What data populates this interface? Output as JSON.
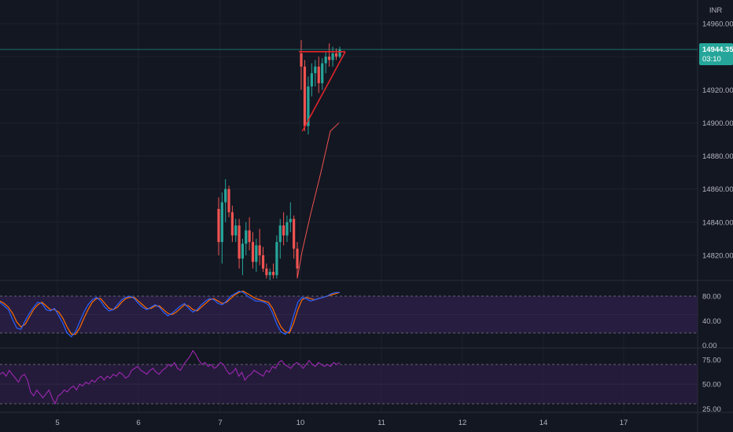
{
  "currency": "INR",
  "last_price": "14944.35",
  "countdown": "03:10",
  "colors": {
    "background": "#131722",
    "up": "#26a69a",
    "down": "#ef5350",
    "price_label": "#26a69a",
    "pattern": "#e0252b",
    "stoch_k": "#2962ff",
    "stoch_d": "#ff6d00",
    "rsi": "#9c27b0",
    "osc_band": "#2c1e45"
  },
  "chart_data": [
    {
      "type": "candlestick",
      "panel": "price",
      "ylim": [
        14805,
        14975
      ],
      "y_ticks": [
        "14820.00",
        "14840.00",
        "14860.00",
        "14880.00",
        "14900.00",
        "14920.00",
        "14940.00",
        "14960.00"
      ],
      "x_ticks": [
        "5",
        "6",
        "7",
        "10",
        "11",
        "12",
        "14",
        "17"
      ],
      "candles": [
        {
          "o": 14848,
          "h": 14855,
          "l": 14820,
          "c": 14828
        },
        {
          "o": 14828,
          "h": 14858,
          "l": 14815,
          "c": 14852
        },
        {
          "o": 14852,
          "h": 14866,
          "l": 14840,
          "c": 14860
        },
        {
          "o": 14860,
          "h": 14862,
          "l": 14843,
          "c": 14846
        },
        {
          "o": 14846,
          "h": 14850,
          "l": 14828,
          "c": 14832
        },
        {
          "o": 14832,
          "h": 14842,
          "l": 14828,
          "c": 14838
        },
        {
          "o": 14838,
          "h": 14842,
          "l": 14812,
          "c": 14818
        },
        {
          "o": 14818,
          "h": 14830,
          "l": 14808,
          "c": 14827
        },
        {
          "o": 14827,
          "h": 14840,
          "l": 14820,
          "c": 14835
        },
        {
          "o": 14835,
          "h": 14843,
          "l": 14823,
          "c": 14828
        },
        {
          "o": 14828,
          "h": 14834,
          "l": 14812,
          "c": 14816
        },
        {
          "o": 14816,
          "h": 14830,
          "l": 14810,
          "c": 14826
        },
        {
          "o": 14826,
          "h": 14836,
          "l": 14814,
          "c": 14820
        },
        {
          "o": 14820,
          "h": 14825,
          "l": 14810,
          "c": 14812
        },
        {
          "o": 14812,
          "h": 14815,
          "l": 14806,
          "c": 14808
        },
        {
          "o": 14808,
          "h": 14812,
          "l": 14805,
          "c": 14810
        },
        {
          "o": 14810,
          "h": 14815,
          "l": 14806,
          "c": 14808
        },
        {
          "o": 14808,
          "h": 14832,
          "l": 14806,
          "c": 14828
        },
        {
          "o": 14828,
          "h": 14842,
          "l": 14818,
          "c": 14838
        },
        {
          "o": 14838,
          "h": 14846,
          "l": 14826,
          "c": 14832
        },
        {
          "o": 14832,
          "h": 14844,
          "l": 14828,
          "c": 14840
        },
        {
          "o": 14840,
          "h": 14852,
          "l": 14834,
          "c": 14842
        },
        {
          "o": 14842,
          "h": 14844,
          "l": 14818,
          "c": 14824
        },
        {
          "o": 14824,
          "h": 14828,
          "l": 14806,
          "c": 14812
        },
        {
          "o": 14942,
          "h": 14950,
          "l": 14920,
          "c": 14934
        },
        {
          "o": 14934,
          "h": 14938,
          "l": 14895,
          "c": 14898
        },
        {
          "o": 14898,
          "h": 14928,
          "l": 14893,
          "c": 14922
        },
        {
          "o": 14922,
          "h": 14936,
          "l": 14916,
          "c": 14930
        },
        {
          "o": 14930,
          "h": 14938,
          "l": 14922,
          "c": 14934
        },
        {
          "o": 14934,
          "h": 14940,
          "l": 14918,
          "c": 14924
        },
        {
          "o": 14924,
          "h": 14939,
          "l": 14920,
          "c": 14936
        },
        {
          "o": 14936,
          "h": 14943,
          "l": 14930,
          "c": 14940
        },
        {
          "o": 14940,
          "h": 14948,
          "l": 14934,
          "c": 14938
        },
        {
          "o": 14938,
          "h": 14946,
          "l": 14934,
          "c": 14942
        },
        {
          "o": 14942,
          "h": 14945,
          "l": 14938,
          "c": 14940
        },
        {
          "o": 14940,
          "h": 14946,
          "l": 14939,
          "c": 14944.35
        }
      ],
      "sma": [
        14806,
        14822,
        14845,
        14870,
        14895,
        14900
      ],
      "pattern_lines": [
        {
          "from": {
            "bar": 24,
            "y": 14943
          },
          "to": {
            "bar": 36,
            "y": 14943
          }
        },
        {
          "from": {
            "bar": 25,
            "y": 14895
          },
          "to": {
            "bar": 36,
            "y": 14943
          }
        }
      ]
    },
    {
      "type": "line",
      "panel": "stochastic",
      "ylim": [
        -2,
        95
      ],
      "y_ticks": [
        "80.00",
        "40.00",
        "0.00"
      ],
      "band": [
        20,
        80
      ],
      "series": [
        {
          "key": "k",
          "values": [
            70,
            64,
            58,
            42,
            28,
            26,
            40,
            52,
            62,
            70,
            68,
            58,
            56,
            60,
            48,
            36,
            20,
            14,
            22,
            38,
            54,
            66,
            74,
            78,
            72,
            62,
            56,
            58,
            66,
            74,
            78,
            80,
            76,
            68,
            62,
            58,
            62,
            66,
            62,
            54,
            48,
            52,
            58,
            64,
            68,
            60,
            54,
            58,
            66,
            72,
            76,
            74,
            68,
            66,
            72,
            80,
            84,
            88,
            86,
            80,
            76,
            72,
            72,
            70,
            66,
            52,
            34,
            22,
            18,
            24,
            48,
            70,
            78,
            76,
            72,
            74,
            76,
            78,
            80,
            84,
            86,
            86
          ]
        },
        {
          "key": "d",
          "values": [
            72,
            68,
            62,
            52,
            38,
            30,
            34,
            46,
            58,
            66,
            70,
            64,
            58,
            58,
            54,
            44,
            30,
            18,
            18,
            28,
            44,
            58,
            70,
            76,
            76,
            68,
            60,
            58,
            62,
            70,
            76,
            78,
            78,
            72,
            66,
            60,
            60,
            64,
            64,
            58,
            52,
            50,
            54,
            60,
            66,
            64,
            58,
            56,
            62,
            68,
            74,
            76,
            72,
            68,
            70,
            76,
            82,
            86,
            88,
            84,
            80,
            76,
            74,
            72,
            70,
            60,
            44,
            30,
            22,
            20,
            36,
            58,
            74,
            78,
            76,
            74,
            76,
            78,
            80,
            82,
            84,
            86
          ]
        }
      ]
    },
    {
      "type": "line",
      "panel": "rsi",
      "ylim": [
        20,
        85
      ],
      "y_ticks": [
        "75.00",
        "50.00",
        "25.00"
      ],
      "band": [
        30,
        70
      ],
      "series": [
        {
          "key": "rsi",
          "values": [
            60,
            62,
            58,
            64,
            60,
            56,
            52,
            58,
            60,
            54,
            42,
            38,
            44,
            40,
            36,
            40,
            44,
            36,
            30,
            38,
            40,
            44,
            42,
            46,
            48,
            44,
            50,
            48,
            52,
            50,
            54,
            52,
            56,
            58,
            54,
            58,
            56,
            60,
            58,
            62,
            60,
            56,
            58,
            64,
            66,
            68,
            64,
            62,
            60,
            64,
            66,
            62,
            60,
            64,
            66,
            70,
            68,
            72,
            66,
            64,
            70,
            74,
            78,
            84,
            80,
            74,
            70,
            72,
            68,
            70,
            66,
            68,
            72,
            70,
            64,
            60,
            62,
            66,
            58,
            62,
            54,
            58,
            60,
            64,
            62,
            60,
            58,
            64,
            62,
            68,
            66,
            72,
            74,
            70,
            68,
            66,
            70,
            72,
            70,
            66,
            70,
            74,
            70,
            68,
            72,
            70,
            68,
            70,
            68,
            72,
            70,
            72
          ]
        }
      ]
    }
  ]
}
